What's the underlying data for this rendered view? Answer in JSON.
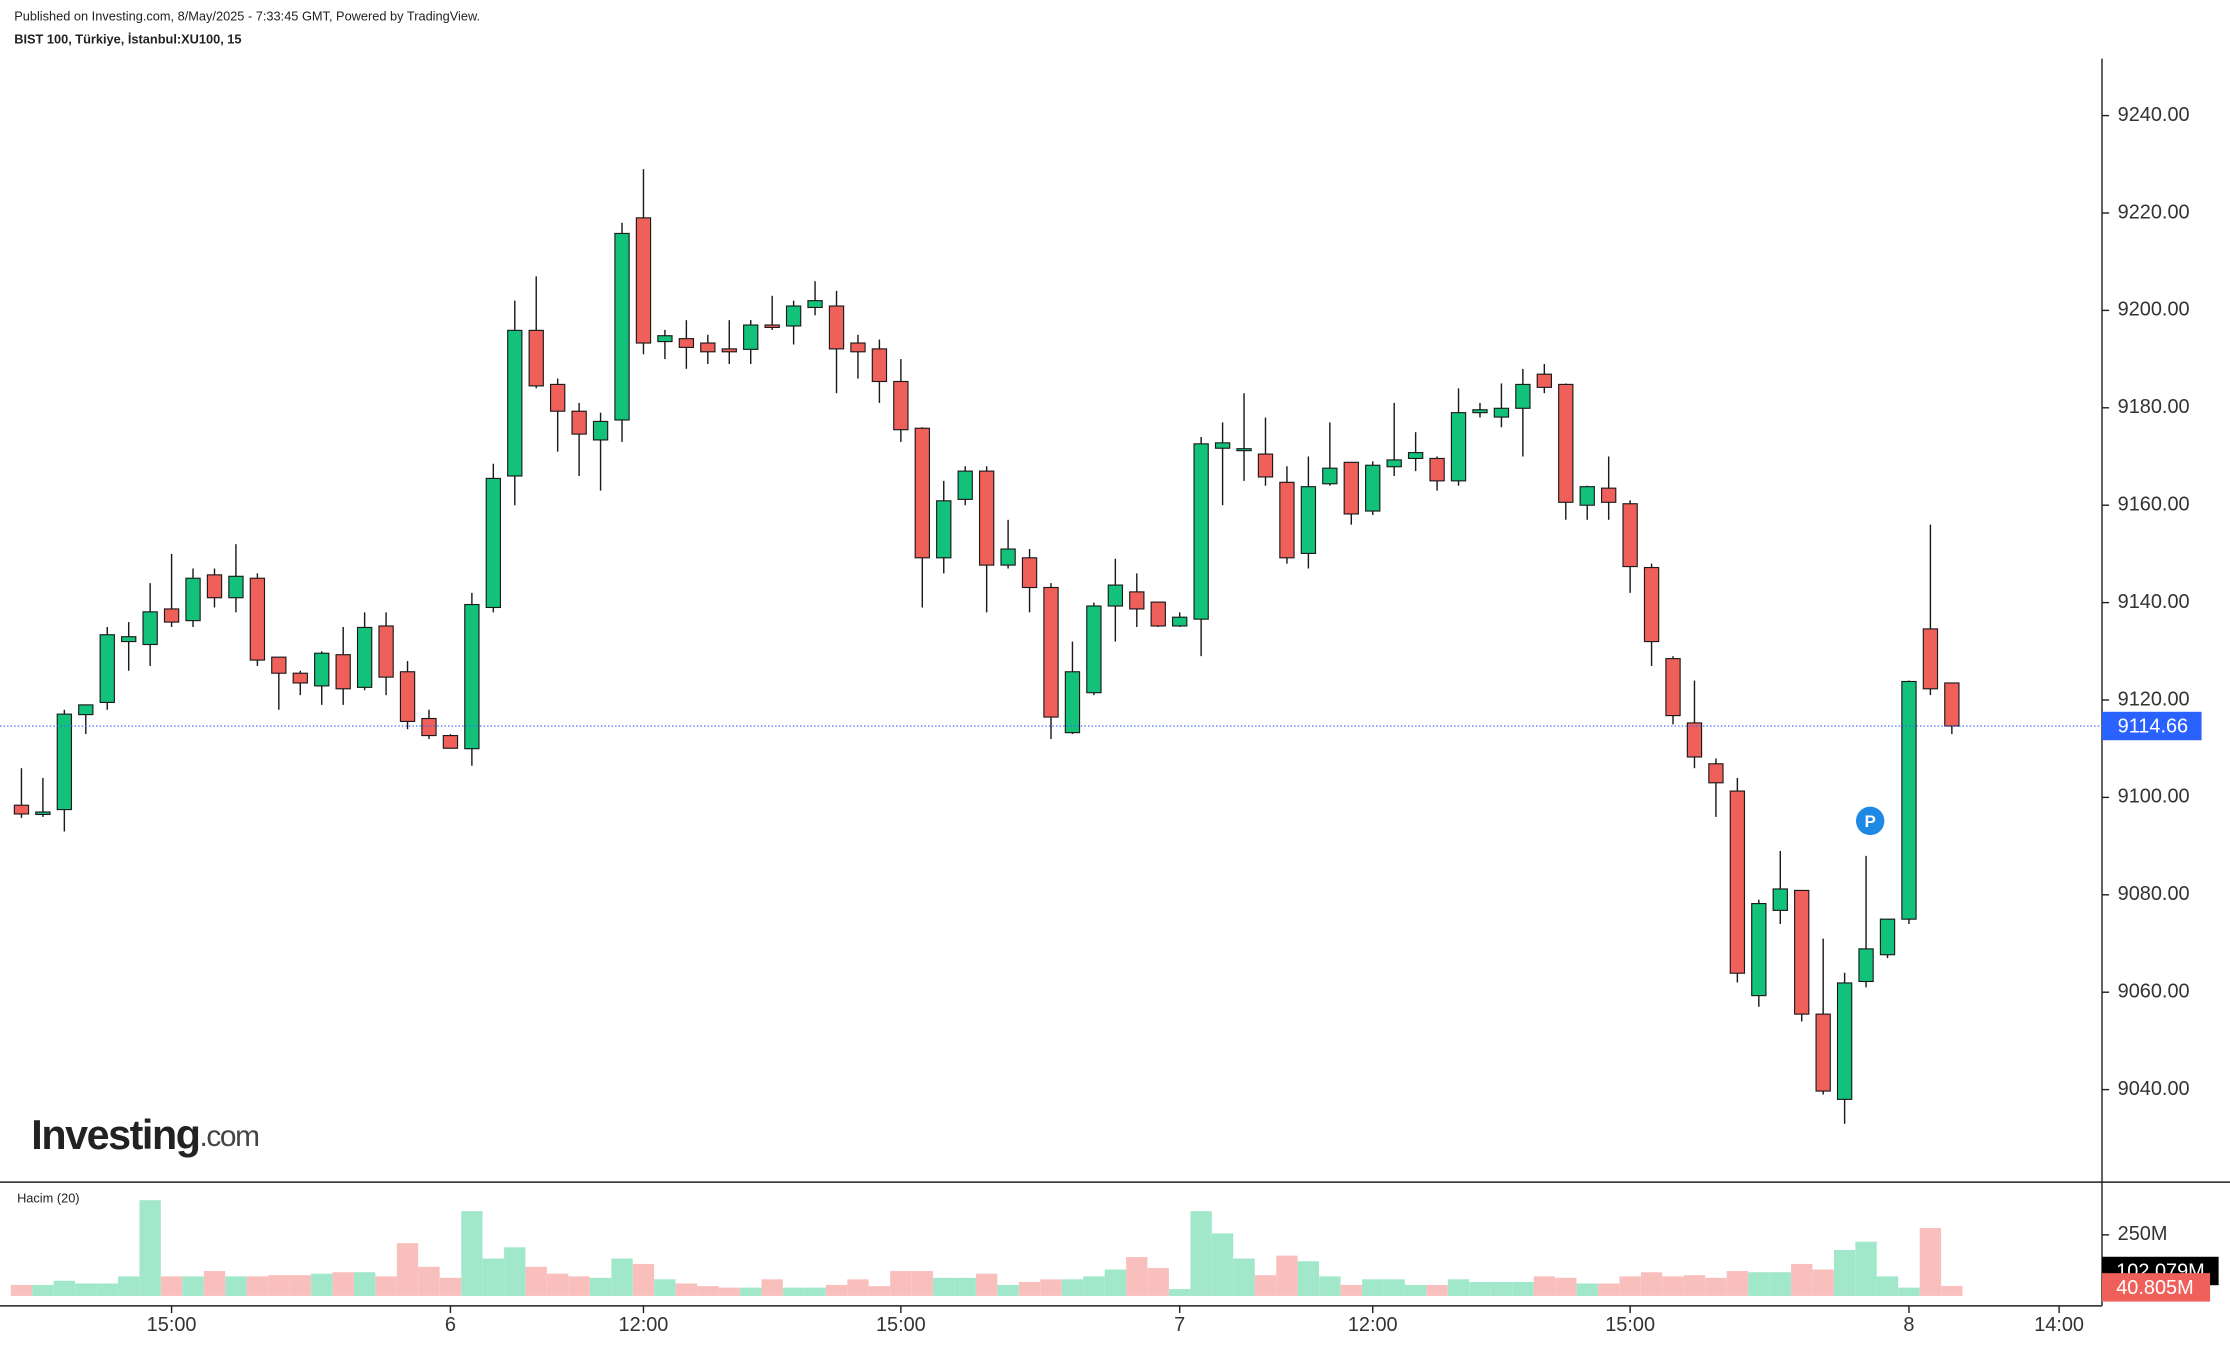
{
  "chart_data": {
    "type": "candlestick",
    "published": "Published on Investing.com, 8/May/2025 - 7:33:45 GMT, Powered by TradingView.",
    "symbol": "BIST 100, Türkiye, İstanbul:XU100, 15",
    "logo": {
      "name": "Investing",
      "suffix": ".com"
    },
    "event_marker": "P",
    "up_color": "#13c27a",
    "down_color": "#f0605a",
    "open": [
      9098.4,
      9096.5,
      9097.5,
      9117,
      9119.5,
      9132,
      9131.4,
      9138.7,
      9136.3,
      9145.7,
      9141,
      9145,
      9128.8,
      9125.5,
      9122.9,
      9129.3,
      9122.6,
      9135.2,
      9125.8,
      9116.2,
      9112.7,
      9110,
      9139,
      9166,
      9195.9,
      9184.8,
      9179.3,
      9173.4,
      9177.5,
      9219,
      9193.6,
      9194.2,
      9193.3,
      9192.1,
      9192,
      9197,
      9196.8,
      9200.6,
      9200.9,
      9193.3,
      9192.1,
      9185.4,
      9175.8,
      9149.2,
      9161.2,
      9167,
      9147.7,
      9149.2,
      9143.1,
      9113.3,
      9121.5,
      9139.3,
      9142.2,
      9140.1,
      9135.2,
      9136.6,
      9171.7,
      9171.2,
      9170.5,
      9164.7,
      9150.1,
      9164.4,
      9168.8,
      9158.8,
      9167.9,
      9169.6,
      9169.6,
      9165,
      9179,
      9178.1,
      9179.9,
      9186.9,
      9184.8,
      9160,
      9163.5,
      9160.3,
      9147.2,
      9128.5,
      9115.3,
      9106.9,
      9101.3,
      9059.3,
      9076.8,
      9080.9,
      9055.5,
      9038,
      9062.2,
      9067.7,
      9075,
      9134.6,
      9123.5
    ],
    "high": [
      9106,
      9104,
      9118,
      9119,
      9135,
      9136,
      9144,
      9150,
      9147,
      9147,
      9152,
      9146,
      9128.8,
      9126,
      9130,
      9135,
      9138,
      9138,
      9128,
      9118,
      9113,
      9142,
      9168.5,
      9202,
      9207,
      9186,
      9181,
      9179,
      9218,
      9229,
      9196,
      9198,
      9195,
      9198,
      9198,
      9203,
      9202,
      9206,
      9204,
      9195,
      9194,
      9190,
      9176,
      9165,
      9168,
      9168,
      9157,
      9151,
      9144,
      9132,
      9140,
      9149,
      9146,
      9140,
      9138,
      9174,
      9177,
      9183,
      9178,
      9168,
      9170,
      9177,
      9168.8,
      9169,
      9181,
      9175,
      9170,
      9184,
      9181,
      9185,
      9188,
      9189,
      9185,
      9164,
      9170,
      9161,
      9148,
      9129,
      9124,
      9108,
      9104,
      9079,
      9089,
      9081,
      9071,
      9064,
      9088,
      9075,
      9124,
      9156,
      9123.5
    ],
    "low": [
      9095.8,
      9096,
      9093,
      9113,
      9118,
      9126,
      9127,
      9135,
      9135,
      9139,
      9138,
      9127,
      9118,
      9121,
      9119,
      9119,
      9122,
      9121,
      9114,
      9112,
      9110,
      9106.5,
      9138,
      9160,
      9184,
      9171,
      9166,
      9163,
      9173,
      9191,
      9190,
      9188,
      9189,
      9189,
      9189,
      9196,
      9193,
      9199,
      9183,
      9186,
      9181,
      9173,
      9139,
      9146,
      9160,
      9138,
      9147,
      9138,
      9112,
      9113,
      9121,
      9132,
      9135,
      9135,
      9135,
      9129,
      9160,
      9165,
      9164,
      9148,
      9147,
      9164,
      9156,
      9158,
      9166,
      9167,
      9163,
      9164,
      9178,
      9176,
      9170,
      9183,
      9157,
      9157,
      9157,
      9142,
      9127,
      9115,
      9106,
      9096,
      9062,
      9057,
      9074,
      9054,
      9039,
      9033,
      9061,
      9067,
      9074,
      9121,
      9113
    ],
    "close": [
      9096.6,
      9097,
      9117.1,
      9119,
      9133.4,
      9133,
      9138.1,
      9136,
      9145,
      9141,
      9145.4,
      9128.2,
      9125.5,
      9123.5,
      9129.6,
      9122.3,
      9134.9,
      9124.7,
      9115.6,
      9112.7,
      9110.1,
      9139.6,
      9165.5,
      9195.9,
      9184.5,
      9179.3,
      9174.6,
      9177.2,
      9215.8,
      9193.3,
      9194.8,
      9192.4,
      9191.5,
      9191.5,
      9197,
      9196.5,
      9200.9,
      9202,
      9192.1,
      9191.5,
      9185.4,
      9175.5,
      9149.2,
      9160.9,
      9167,
      9147.7,
      9151,
      9143.1,
      9116.5,
      9125.8,
      9139.3,
      9143.6,
      9138.7,
      9135.2,
      9137,
      9172.6,
      9172.8,
      9171.6,
      9165.8,
      9149.2,
      9163.8,
      9167.6,
      9158.2,
      9168.2,
      9169.3,
      9170.8,
      9165,
      9179,
      9179.6,
      9179.9,
      9184.8,
      9184.2,
      9160.6,
      9163.8,
      9160.6,
      9147.4,
      9132,
      9116.8,
      9108.3,
      9103,
      9063.9,
      9078.2,
      9081.2,
      9055.5,
      9039.7,
      9061.9,
      9068.9,
      9075,
      9123.8,
      9122.3,
      9114.66
    ],
    "ylim": [
      9021,
      9251.7
    ],
    "yticks": [
      {
        "value": 9040,
        "label": "9040.00"
      },
      {
        "value": 9060,
        "label": "9060.00"
      },
      {
        "value": 9080,
        "label": "9080.00"
      },
      {
        "value": 9100,
        "label": "9100.00"
      },
      {
        "value": 9120,
        "label": "9120.00"
      },
      {
        "value": 9140,
        "label": "9140.00"
      },
      {
        "value": 9160,
        "label": "9160.00"
      },
      {
        "value": 9180,
        "label": "9180.00"
      },
      {
        "value": 9200,
        "label": "9200.00"
      },
      {
        "value": 9220,
        "label": "9220.00"
      },
      {
        "value": 9240,
        "label": "9240.00"
      }
    ],
    "xlim": [
      -1,
      97
    ],
    "xticks": [
      {
        "value": 7,
        "label": "15:00"
      },
      {
        "value": 20,
        "label": "6"
      },
      {
        "value": 29,
        "label": "12:00"
      },
      {
        "value": 41,
        "label": "15:00"
      },
      {
        "value": 54,
        "label": "7"
      },
      {
        "value": 63,
        "label": "12:00"
      },
      {
        "value": 75,
        "label": "15:00"
      },
      {
        "value": 88,
        "label": "8"
      },
      {
        "value": 95,
        "label": "14:00"
      }
    ],
    "volume": {
      "name": "Hacim (20)",
      "values": [
        45,
        45,
        62,
        51,
        51,
        80,
        392,
        80,
        80,
        102,
        80,
        80,
        85,
        85,
        91,
        97,
        97,
        80,
        216,
        119,
        74,
        347,
        153,
        199,
        119,
        91,
        80,
        74,
        153,
        131,
        68,
        51,
        40,
        34,
        34,
        68,
        34,
        34,
        45,
        68,
        40,
        102,
        102,
        74,
        74,
        91,
        45,
        57,
        68,
        68,
        80,
        108,
        159,
        114,
        28,
        347,
        256,
        153,
        85,
        165,
        142,
        80,
        45,
        68,
        68,
        45,
        45,
        68,
        57,
        57,
        57,
        80,
        74,
        51,
        51,
        80,
        97,
        80,
        85,
        74,
        102,
        97,
        97,
        131,
        108,
        188,
        222,
        80,
        34,
        278,
        40.805
      ],
      "last_value_label": "40.805M",
      "ma": {
        "value": 102.079,
        "label": "102.079M"
      },
      "ylim": [
        0,
        460
      ],
      "yticks": [
        {
          "value": 250,
          "label": "250M"
        }
      ]
    }
  }
}
